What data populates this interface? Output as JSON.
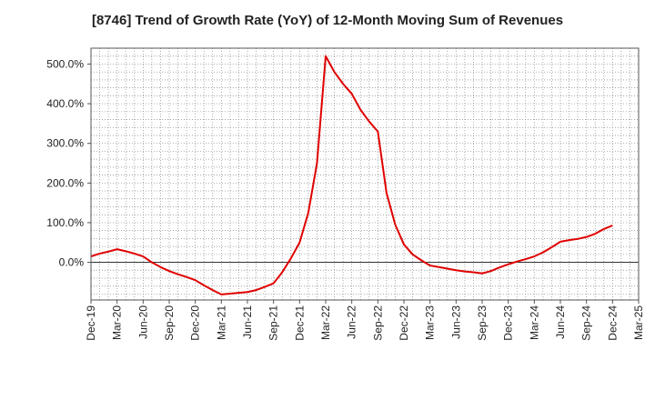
{
  "chart_data": {
    "type": "line",
    "title": "[8746]  Trend of Growth Rate (YoY) of 12-Month Moving Sum of Revenues",
    "xlabel": "",
    "ylabel": "",
    "ylim": [
      -95,
      540
    ],
    "grid": true,
    "yticks": [
      0,
      100,
      200,
      300,
      400,
      500
    ],
    "ytick_labels": [
      "0.0%",
      "100.0%",
      "200.0%",
      "300.0%",
      "400.0%",
      "500.0%"
    ],
    "x_tick_labels": [
      "Dec-19",
      "Mar-20",
      "Jun-20",
      "Sep-20",
      "Dec-20",
      "Mar-21",
      "Jun-21",
      "Sep-21",
      "Dec-21",
      "Mar-22",
      "Jun-22",
      "Sep-22",
      "Dec-22",
      "Mar-23",
      "Jun-23",
      "Sep-23",
      "Dec-23",
      "Mar-24",
      "Jun-24",
      "Sep-24",
      "Dec-24",
      "Mar-25"
    ],
    "series": [
      {
        "color": "#e00000",
        "x": [
          "Dec-19",
          "Jan-20",
          "Feb-20",
          "Mar-20",
          "Apr-20",
          "May-20",
          "Jun-20",
          "Jul-20",
          "Aug-20",
          "Sep-20",
          "Oct-20",
          "Nov-20",
          "Dec-20",
          "Jan-21",
          "Feb-21",
          "Mar-21",
          "Apr-21",
          "May-21",
          "Jun-21",
          "Jul-21",
          "Aug-21",
          "Sep-21",
          "Oct-21",
          "Nov-21",
          "Dec-21",
          "Jan-22",
          "Feb-22",
          "Mar-22",
          "Apr-22",
          "May-22",
          "Jun-22",
          "Jul-22",
          "Aug-22",
          "Sep-22",
          "Oct-22",
          "Nov-22",
          "Dec-22",
          "Jan-23",
          "Feb-23",
          "Mar-23",
          "Apr-23",
          "May-23",
          "Jun-23",
          "Jul-23",
          "Aug-23",
          "Sep-23",
          "Oct-23",
          "Nov-23",
          "Dec-23",
          "Jan-24",
          "Feb-24",
          "Mar-24",
          "Apr-24",
          "May-24",
          "Jun-24",
          "Jul-24",
          "Aug-24",
          "Sep-24",
          "Oct-24",
          "Nov-24",
          "Dec-24"
        ],
        "values": [
          15,
          22,
          27,
          33,
          28,
          22,
          15,
          0,
          -12,
          -22,
          -30,
          -37,
          -45,
          -58,
          -70,
          -81,
          -79,
          -77,
          -75,
          -70,
          -62,
          -53,
          -25,
          10,
          50,
          125,
          250,
          520,
          480,
          450,
          425,
          385,
          355,
          330,
          175,
          95,
          45,
          20,
          5,
          -8,
          -12,
          -16,
          -20,
          -23,
          -25,
          -28,
          -22,
          -13,
          -5,
          2,
          8,
          15,
          25,
          38,
          52,
          56,
          59,
          64,
          72,
          84,
          93
        ]
      }
    ]
  }
}
